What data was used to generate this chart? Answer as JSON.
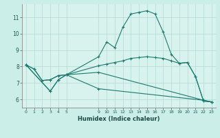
{
  "bg_color": "#cceee8",
  "plot_bg_color": "#d8f2ee",
  "grid_color": "#b8ddd8",
  "line_color": "#1a7a6e",
  "xlabel": "Humidex (Indice chaleur)",
  "xlim": [
    -0.5,
    23.5
  ],
  "ylim": [
    5.5,
    11.8
  ],
  "yticks": [
    6,
    7,
    8,
    9,
    10,
    11
  ],
  "xticks": [
    0,
    1,
    2,
    3,
    4,
    5,
    9,
    10,
    11,
    12,
    13,
    14,
    15,
    16,
    17,
    18,
    19,
    20,
    21,
    22,
    23
  ],
  "series": [
    {
      "x": [
        0,
        1,
        2,
        3,
        4,
        5,
        9,
        10,
        11,
        12,
        13,
        14,
        15,
        16,
        17,
        18,
        19,
        20,
        21,
        22,
        23
      ],
      "y": [
        8.1,
        7.85,
        7.15,
        7.2,
        7.45,
        7.5,
        8.6,
        9.5,
        9.15,
        10.4,
        11.2,
        11.3,
        11.4,
        11.2,
        10.1,
        8.75,
        8.2,
        8.25,
        7.4,
        5.9,
        5.85
      ]
    },
    {
      "x": [
        0,
        1,
        2,
        3,
        4,
        5,
        9,
        10,
        11,
        12,
        13,
        14,
        15,
        16,
        17,
        18,
        19,
        20,
        21,
        22,
        23
      ],
      "y": [
        8.1,
        7.85,
        7.15,
        7.2,
        7.45,
        7.5,
        8.05,
        8.15,
        8.25,
        8.35,
        8.5,
        8.55,
        8.6,
        8.55,
        8.5,
        8.35,
        8.2,
        8.25,
        7.4,
        5.9,
        5.85
      ]
    },
    {
      "x": [
        0,
        3,
        4,
        5,
        9,
        22,
        23
      ],
      "y": [
        8.1,
        6.5,
        7.2,
        7.5,
        7.65,
        5.95,
        5.85
      ]
    },
    {
      "x": [
        0,
        3,
        4,
        5,
        9,
        22,
        23
      ],
      "y": [
        8.1,
        6.5,
        7.2,
        7.5,
        6.65,
        5.95,
        5.85
      ]
    }
  ]
}
